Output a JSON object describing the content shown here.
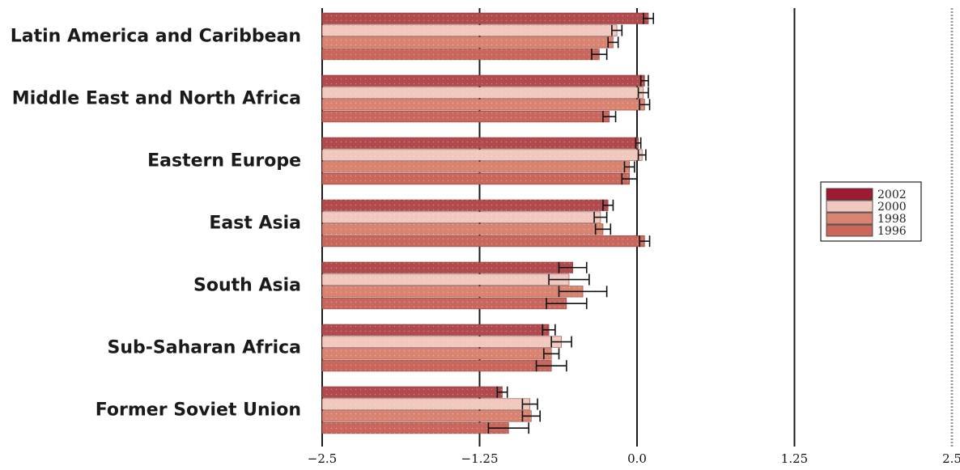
{
  "chart_data": {
    "type": "bar",
    "orientation": "horizontal",
    "title": "",
    "xlabel": "",
    "ylabel": "",
    "xlim": [
      -2.5,
      2.5
    ],
    "x_ticks": [
      -2.5,
      -1.25,
      0.0,
      1.25,
      2.5
    ],
    "x_tick_labels": [
      "−2.5",
      "−1.25",
      "0.0",
      "1.25",
      "2.5"
    ],
    "grid": "vertical lines at ticks",
    "legend_position": "right",
    "categories": [
      "Latin America and Caribbean",
      "Middle East and North Africa",
      "Eastern Europe",
      "East Asia",
      "South Asia",
      "Sub-Saharan Africa",
      "Former Soviet Union"
    ],
    "series": [
      {
        "name": "2002",
        "color": "#b04a4c",
        "values": [
          0.09,
          0.06,
          0.01,
          -0.23,
          -0.51,
          -0.7,
          -1.07
        ],
        "error": [
          0.04,
          0.03,
          0.02,
          0.04,
          0.11,
          0.05,
          0.04
        ]
      },
      {
        "name": "2000",
        "color": "#f0c8bd",
        "values": [
          -0.16,
          0.05,
          0.04,
          -0.29,
          -0.54,
          -0.6,
          -0.85
        ],
        "error": [
          0.04,
          0.04,
          0.03,
          0.05,
          0.16,
          0.08,
          0.06
        ]
      },
      {
        "name": "1998",
        "color": "#d98471",
        "values": [
          -0.19,
          0.06,
          -0.06,
          -0.27,
          -0.43,
          -0.68,
          -0.84
        ],
        "error": [
          0.04,
          0.04,
          0.04,
          0.06,
          0.19,
          0.06,
          0.07
        ]
      },
      {
        "name": "1996",
        "color": "#c9675d",
        "values": [
          -0.3,
          -0.22,
          -0.06,
          0.06,
          -0.56,
          -0.68,
          -1.02
        ],
        "error": [
          0.06,
          0.05,
          0.06,
          0.04,
          0.16,
          0.12,
          0.16
        ]
      }
    ]
  },
  "legend": {
    "items": [
      {
        "label": "2002",
        "color": "#9e1b32"
      },
      {
        "label": "2000",
        "color": "#f0c8bd"
      },
      {
        "label": "1998",
        "color": "#d98471"
      },
      {
        "label": "1996",
        "color": "#c9675d"
      }
    ]
  }
}
